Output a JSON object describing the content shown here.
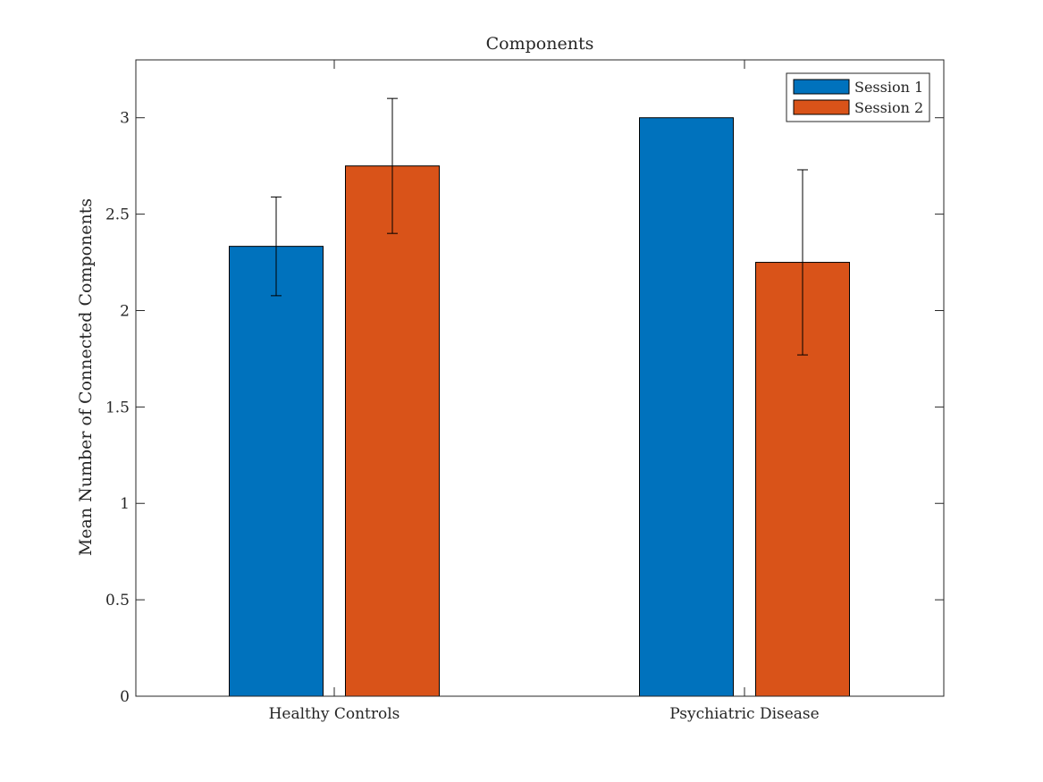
{
  "chart_data": {
    "type": "bar",
    "title": "Components",
    "xlabel": "",
    "ylabel": "Mean Number of Connected Components",
    "categories": [
      "Healthy Controls",
      "Psychiatric Disease"
    ],
    "series": [
      {
        "name": "Session 1",
        "color": "#0072BD",
        "values": [
          2.333,
          3.0
        ],
        "errors": [
          0.256,
          null
        ]
      },
      {
        "name": "Session 2",
        "color": "#D95319",
        "values": [
          2.75,
          2.25
        ],
        "errors": [
          0.35,
          0.48
        ]
      }
    ],
    "ylim": [
      0,
      3.3
    ],
    "yticks": [
      0,
      0.5,
      1,
      1.5,
      2,
      2.5,
      3
    ],
    "ytick_labels": [
      "0",
      "0.5",
      "1",
      "1.5",
      "2",
      "2.5",
      "3"
    ],
    "grid": false,
    "legend_position": "top-right"
  }
}
